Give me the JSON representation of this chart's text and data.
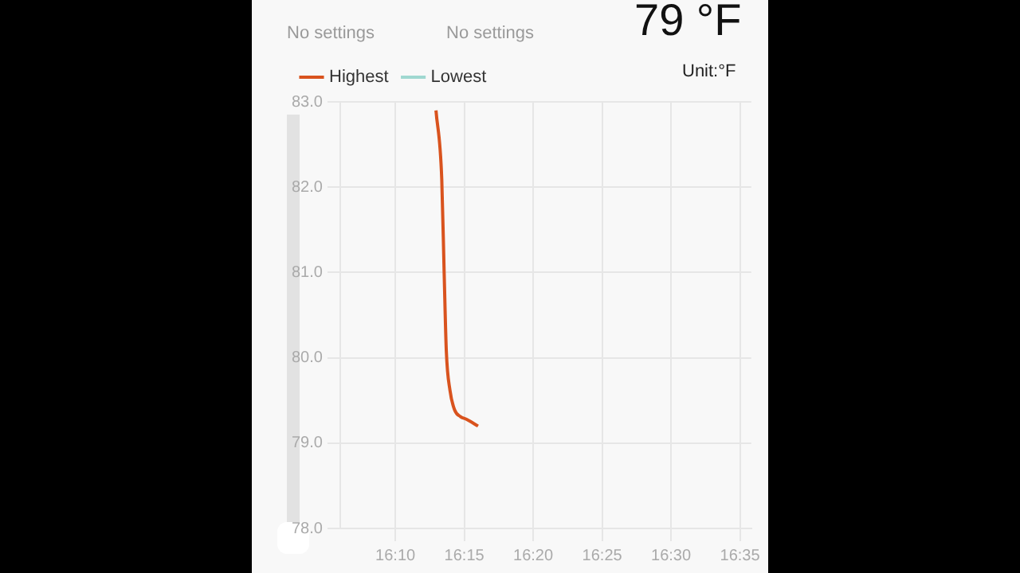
{
  "chart_data": {
    "type": "line",
    "annotations": [
      "No settings",
      "No settings",
      "79 °F",
      "Unit:°F"
    ],
    "series": [
      {
        "name": "Highest",
        "color": "#d9531e",
        "x": [
          16.2158,
          16.2228,
          16.2257,
          16.2283,
          16.2327,
          16.2383,
          16.2455,
          16.2525,
          16.2667
        ],
        "values": [
          82.9,
          82.09,
          80.99,
          80.08,
          79.62,
          79.39,
          79.31,
          79.28,
          79.2
        ]
      },
      {
        "name": "Lowest",
        "color": "#9fd8d0"
      }
    ],
    "xlim": [
      16.1,
      16.597
    ],
    "xticks": [
      {
        "value": 16.1667,
        "label": "16:10"
      },
      {
        "value": 16.25,
        "label": "16:15"
      },
      {
        "value": 16.3333,
        "label": "16:20"
      },
      {
        "value": 16.4167,
        "label": "16:25"
      },
      {
        "value": 16.5,
        "label": "16:30"
      },
      {
        "value": 16.5833,
        "label": "16:35"
      }
    ],
    "ylim": [
      78,
      83
    ],
    "yticks": [
      {
        "value": 78,
        "label": "78.0"
      },
      {
        "value": 79,
        "label": "79.0"
      },
      {
        "value": 80,
        "label": "80.0"
      },
      {
        "value": 81,
        "label": "81.0"
      },
      {
        "value": 82,
        "label": "82.0"
      },
      {
        "value": 83,
        "label": "83.0"
      }
    ],
    "grid": true,
    "legend": "top left",
    "marker": "none",
    "line_style": "solid"
  }
}
